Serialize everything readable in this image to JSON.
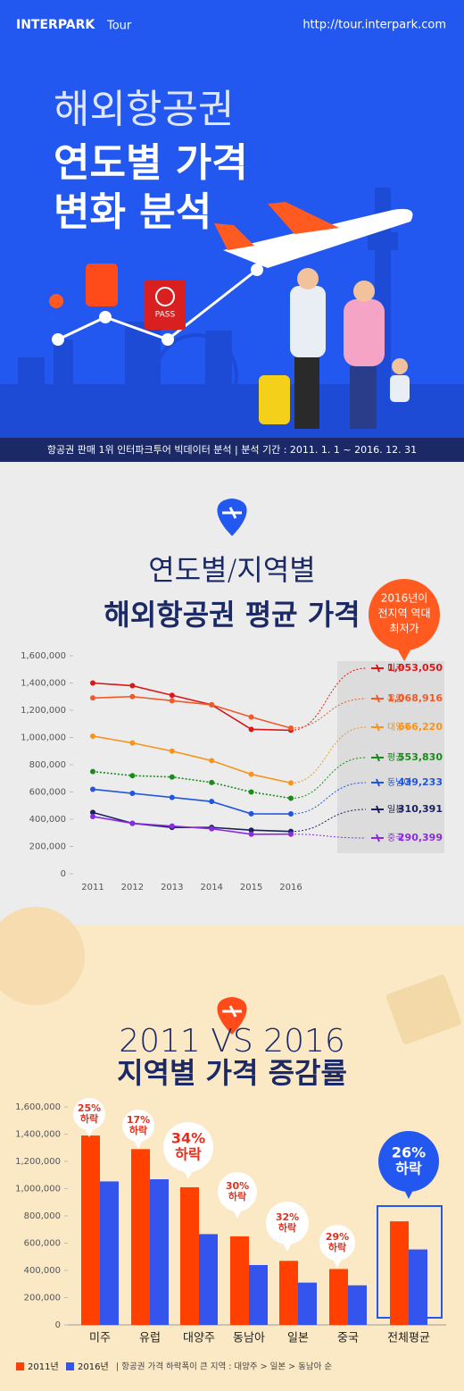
{
  "header": {
    "brand": "INTERPARK",
    "brand_sub": "Tour",
    "url": "http://tour.interpark.com",
    "title": [
      "해외항공권",
      "연도별 가격",
      "변화 분석"
    ],
    "passport": "PASS",
    "source": "항공권 판매 1위 인터파크투어 빅데이터 분석  |  분석 기간 : 2011. 1. 1 ~ 2016. 12. 31"
  },
  "chart_data": [
    {
      "type": "line",
      "title": [
        "연도별/지역별",
        "해외항공권 평균 가격"
      ],
      "callout": [
        "2016년이",
        "전지역 역대",
        "최저가"
      ],
      "categories": [
        "2011",
        "2012",
        "2013",
        "2014",
        "2015",
        "2016"
      ],
      "ylim": [
        0,
        1600000
      ],
      "yticks": [
        0,
        {
          "value": 200000,
          "label": "200,000"
        },
        {
          "value": 400000,
          "label": "400,000"
        },
        {
          "value": 600000,
          "label": "600,000"
        },
        {
          "value": 800000,
          "label": "800,000"
        },
        {
          "value": 1000000,
          "label": "1,000,000"
        },
        {
          "value": 1200000,
          "label": "1,200,000"
        },
        {
          "value": 1400000,
          "label": "1,400,000"
        },
        {
          "value": 1600000,
          "label": "1,600,000"
        }
      ],
      "series": [
        {
          "name": "미주",
          "color": "#d7191c",
          "values": [
            1400000,
            1380000,
            1310000,
            1240000,
            1060000,
            1053050
          ],
          "value_labels": [
            null,
            null,
            null,
            null,
            null,
            "1,053,050"
          ]
        },
        {
          "name": "유럽",
          "color": "#f05a28",
          "values": [
            1290000,
            1300000,
            1270000,
            1240000,
            1150000,
            1068916
          ],
          "value_labels": [
            null,
            null,
            null,
            null,
            null,
            "1,068,916"
          ]
        },
        {
          "name": "대양주",
          "color": "#f7931e",
          "values": [
            1010000,
            960000,
            900000,
            830000,
            730000,
            666220
          ],
          "value_labels": [
            null,
            null,
            null,
            null,
            null,
            "666,220"
          ]
        },
        {
          "name": "평균",
          "color": "#1a8a1a",
          "style": "dotted",
          "values": [
            750000,
            720000,
            710000,
            670000,
            600000,
            553830
          ],
          "value_labels": [
            null,
            null,
            null,
            null,
            null,
            "553,830"
          ]
        },
        {
          "name": "동남아",
          "color": "#2255dd",
          "values": [
            620000,
            590000,
            560000,
            530000,
            440000,
            439233
          ],
          "value_labels": [
            null,
            null,
            null,
            null,
            null,
            "439,233"
          ]
        },
        {
          "name": "일본",
          "color": "#1a2060",
          "values": [
            450000,
            370000,
            340000,
            340000,
            320000,
            310391
          ],
          "value_labels": [
            null,
            null,
            null,
            null,
            null,
            "310,391"
          ]
        },
        {
          "name": "중국",
          "color": "#8a2be2",
          "values": [
            420000,
            370000,
            350000,
            330000,
            290000,
            290399
          ],
          "value_labels": [
            null,
            null,
            null,
            null,
            null,
            "290,399"
          ]
        }
      ]
    },
    {
      "type": "bar",
      "title": [
        "2011 VS 2016",
        "지역별 가격 증감률"
      ],
      "categories": [
        "미주",
        "유럽",
        "대양주",
        "동남아",
        "일본",
        "중국",
        "전체평균"
      ],
      "ylim": [
        0,
        1600000
      ],
      "yticks": [
        0,
        {
          "value": 200000,
          "label": "200,000"
        },
        {
          "value": 400000,
          "label": "400,000"
        },
        {
          "value": 600000,
          "label": "600,000"
        },
        {
          "value": 800000,
          "label": "800,000"
        },
        {
          "value": 1000000,
          "label": "1,000,000"
        },
        {
          "value": 1200000,
          "label": "1,200,000"
        },
        {
          "value": 1400000,
          "label": "1,400,000"
        },
        {
          "value": 1600000,
          "label": "1,600,000"
        }
      ],
      "series": [
        {
          "name": "2011년",
          "color": "#ff4000",
          "values": [
            1390000,
            1290000,
            1010000,
            650000,
            470000,
            410000,
            760000
          ]
        },
        {
          "name": "2016년",
          "color": "#3355ee",
          "values": [
            1053050,
            1068916,
            666220,
            439233,
            310391,
            290399,
            553830
          ]
        }
      ],
      "annotations": [
        {
          "pct": "25%",
          "word": "하락"
        },
        {
          "pct": "17%",
          "word": "하락"
        },
        {
          "pct": "34%",
          "word": "하락"
        },
        {
          "pct": "30%",
          "word": "하락"
        },
        {
          "pct": "32%",
          "word": "하락"
        },
        {
          "pct": "29%",
          "word": "하락"
        },
        {
          "pct": "26%",
          "word": "하락"
        }
      ],
      "note": "|  항공권 가격 하락폭이 큰 지역 : 대양주 > 일본 > 동남아 순"
    }
  ]
}
